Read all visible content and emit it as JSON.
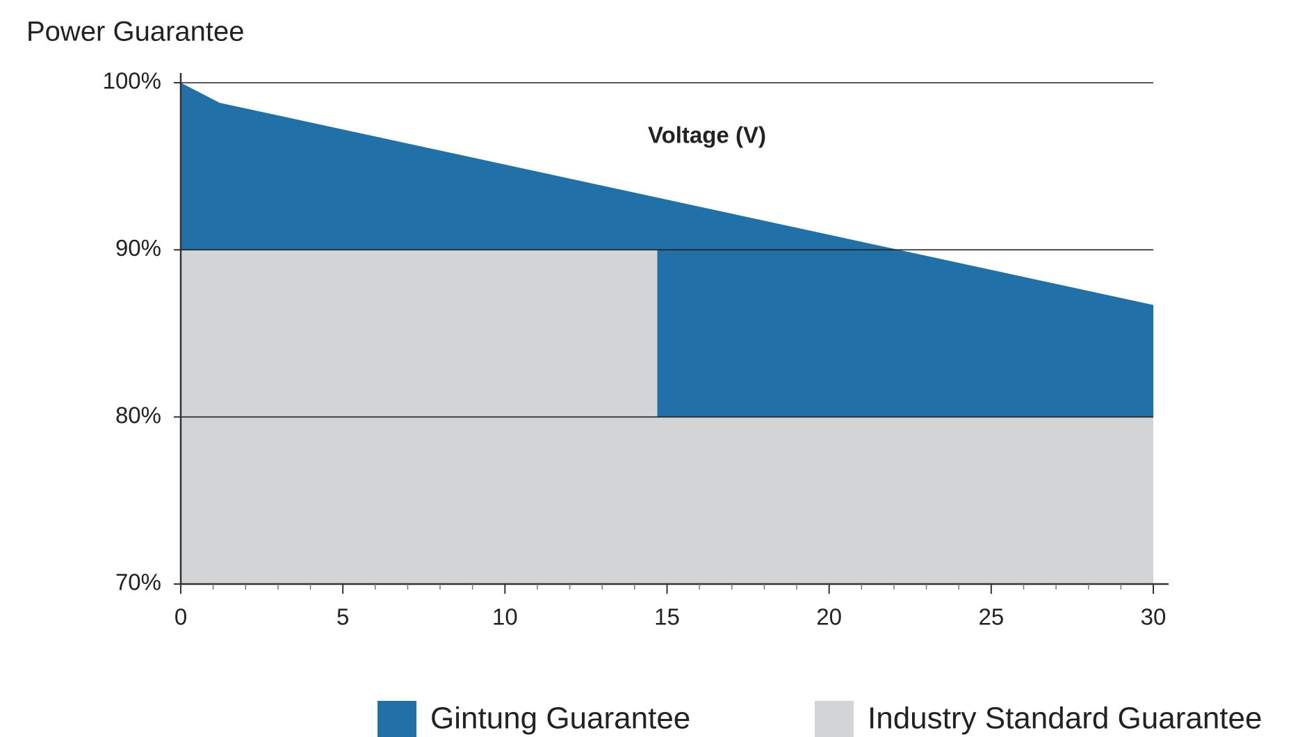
{
  "chart_data": {
    "type": "area",
    "title": "Power Guarantee",
    "annotation": "Voltage (V)",
    "xlim": [
      0,
      30
    ],
    "xticks": [
      0,
      5,
      10,
      15,
      20,
      25,
      30
    ],
    "xminorticks": [
      1,
      2,
      3,
      4,
      6,
      7,
      8,
      9,
      11,
      12,
      13,
      14,
      16,
      17,
      18,
      19,
      21,
      22,
      23,
      24,
      26,
      27,
      28,
      29
    ],
    "ylim": [
      70,
      100
    ],
    "yticks": [
      {
        "value": 70,
        "label": "70%"
      },
      {
        "value": 80,
        "label": "80%"
      },
      {
        "value": 90,
        "label": "90%"
      },
      {
        "value": 100,
        "label": "100%"
      }
    ],
    "grid": true,
    "legend": "bottom",
    "series": [
      {
        "name": "Gintung Guarantee",
        "color": "#2170a8",
        "x": [
          0,
          1.2,
          30
        ],
        "values": [
          100,
          98.8,
          86.7
        ]
      },
      {
        "name": "Industry Standard Guarantee",
        "color": "#d3d4d6",
        "x": [
          0,
          14.7,
          14.7,
          30
        ],
        "values": [
          90,
          90,
          80,
          80
        ]
      }
    ]
  }
}
